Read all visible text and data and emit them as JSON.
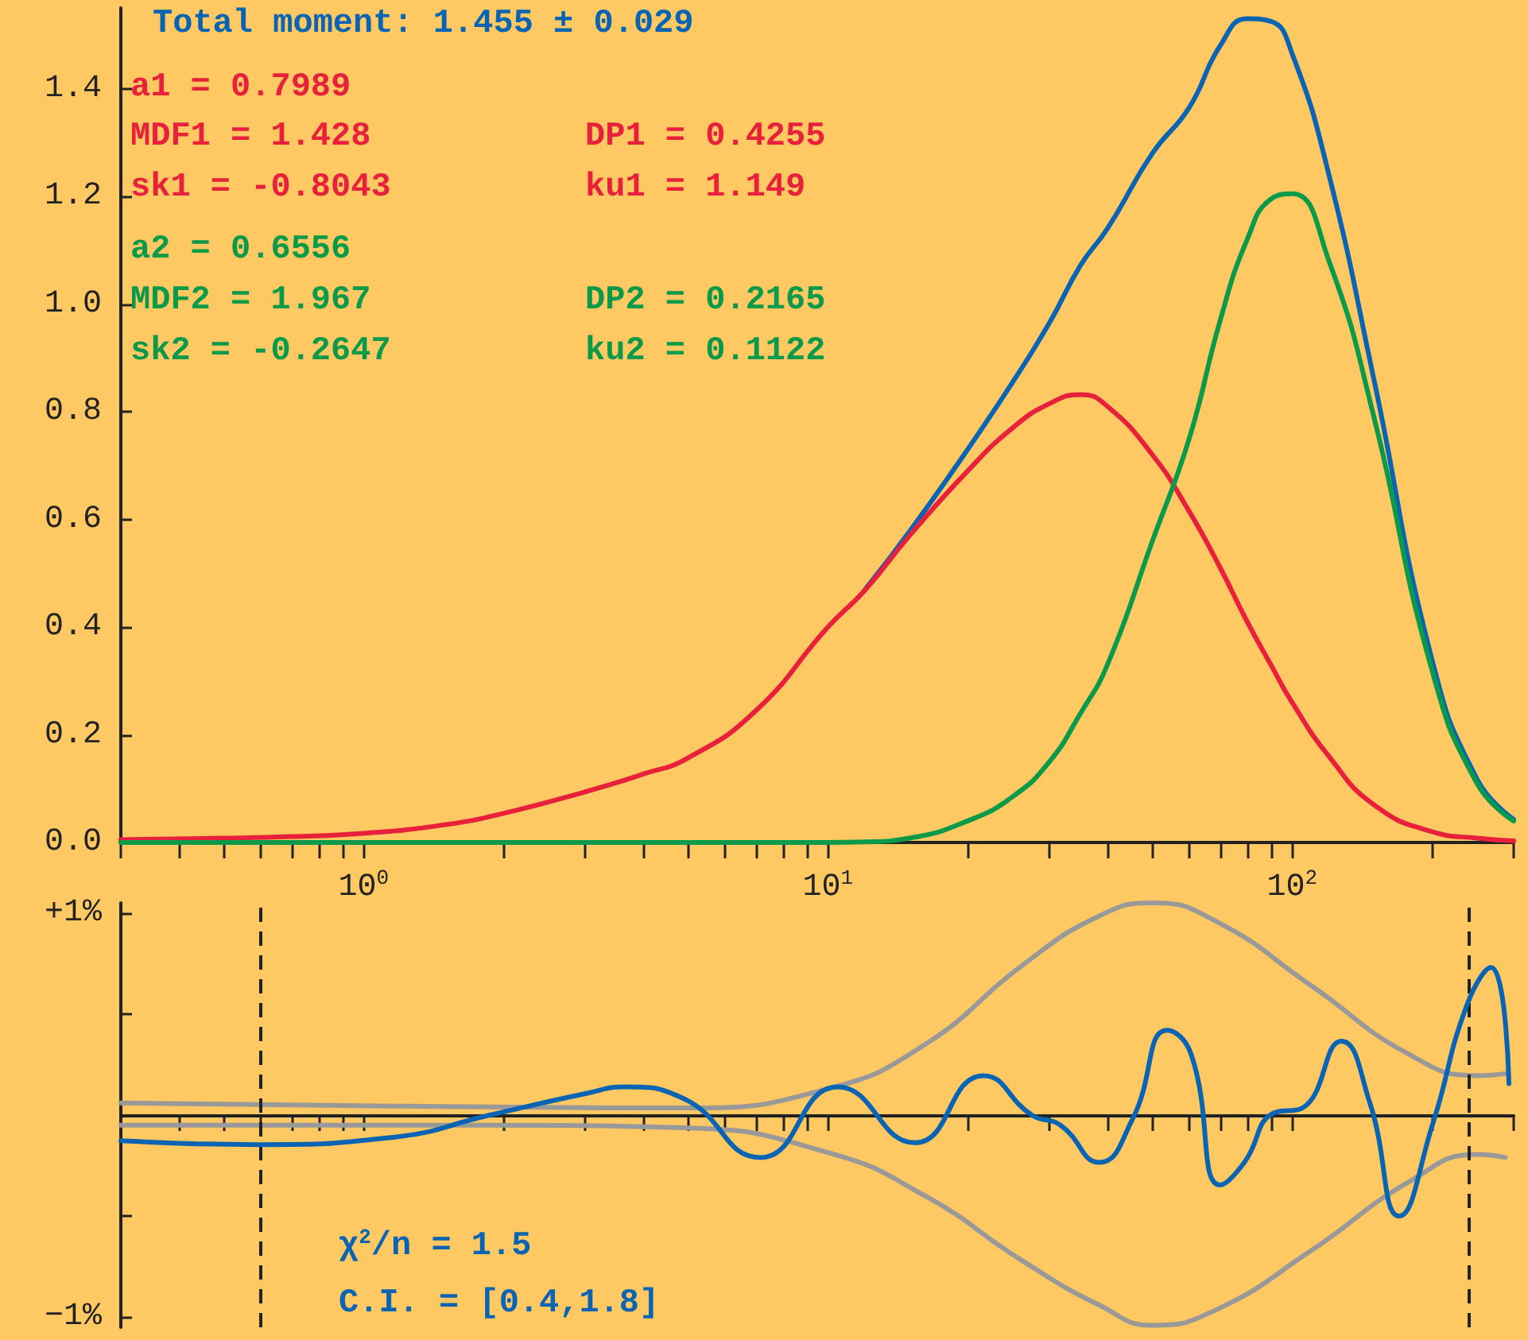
{
  "chart_data": [
    {
      "type": "line",
      "log": "x",
      "xlim": [
        0.3,
        300
      ],
      "ylim": [
        0,
        1.55
      ],
      "marker": "none",
      "line_style": "solid",
      "grid": false,
      "xticks": [
        {
          "value": 0.3,
          "label": null
        },
        {
          "value": 0.4,
          "label": null
        },
        {
          "value": 0.5,
          "label": null
        },
        {
          "value": 0.6,
          "label": null
        },
        {
          "value": 0.7,
          "label": null
        },
        {
          "value": 0.8,
          "label": null
        },
        {
          "value": 0.9,
          "label": null
        },
        {
          "value": 1,
          "label": "10$^{0}$"
        },
        {
          "value": 2,
          "label": null
        },
        {
          "value": 3,
          "label": null
        },
        {
          "value": 4,
          "label": null
        },
        {
          "value": 5,
          "label": null
        },
        {
          "value": 6,
          "label": null
        },
        {
          "value": 7,
          "label": null
        },
        {
          "value": 8,
          "label": null
        },
        {
          "value": 9,
          "label": null
        },
        {
          "value": 10,
          "label": "10$^{1}$"
        },
        {
          "value": 20,
          "label": null
        },
        {
          "value": 30,
          "label": null
        },
        {
          "value": 40,
          "label": null
        },
        {
          "value": 50,
          "label": null
        },
        {
          "value": 60,
          "label": null
        },
        {
          "value": 70,
          "label": null
        },
        {
          "value": 80,
          "label": null
        },
        {
          "value": 90,
          "label": null
        },
        {
          "value": 100,
          "label": "10$^{2}$"
        },
        {
          "value": 200,
          "label": null
        },
        {
          "value": 300,
          "label": null
        }
      ],
      "yticks": [
        {
          "value": 0,
          "label": "0.0"
        },
        0.2,
        0.4,
        0.6,
        0.8,
        {
          "value": 1,
          "label": "1.0"
        },
        1.2,
        1.4
      ],
      "x": [
        0.3,
        0.5,
        0.7,
        1,
        1.5,
        2,
        3,
        4,
        5,
        7,
        10,
        12,
        15,
        20,
        25,
        30,
        35,
        40,
        50,
        60,
        70,
        80,
        90,
        100,
        120,
        150,
        200,
        250,
        300
      ],
      "series": [
        {
          "color": "#0a64b4",
          "values": [
            null,
            null,
            null,
            null,
            null,
            null,
            null,
            null,
            null,
            null,
            null,
            0.469,
            0.578,
            0.73,
            0.855,
            0.965,
            1.072,
            1.14,
            1.28,
            1.365,
            1.48,
            1.53,
            1.525,
            1.465,
            1.24,
            0.86,
            0.34,
            0.118,
            0.043
          ]
        },
        {
          "color": "#e8203c",
          "values": [
            0.005,
            0.008,
            0.011,
            0.017,
            0.033,
            0.054,
            0.094,
            0.127,
            0.157,
            0.245,
            0.4,
            0.468,
            0.57,
            0.69,
            0.77,
            0.815,
            0.832,
            0.81,
            0.72,
            0.615,
            0.51,
            0.41,
            0.33,
            0.26,
            0.16,
            0.07,
            0.02,
            0.008,
            0.003
          ]
        },
        {
          "color": "#0a9a4a",
          "values": [
            0,
            0,
            0,
            0,
            0,
            0,
            0,
            0,
            0,
            0,
            0,
            0.001,
            0.008,
            0.04,
            0.085,
            0.15,
            0.24,
            0.33,
            0.56,
            0.75,
            0.97,
            1.12,
            1.195,
            1.205,
            1.08,
            0.79,
            0.32,
            0.11,
            0.04
          ]
        }
      ],
      "annotations": [
        "Total moment: 1.455 ± 0.029",
        "a1 = 0.7989",
        "MDF1 = 1.428",
        "DP1 = 0.4255",
        "sk1 = -0.8043",
        "ku1 = 1.149",
        "a2 = 0.6556",
        "MDF2 = 1.967",
        "DP2 = 0.2165",
        "sk2 = -0.2647",
        "ku2 = 0.1122"
      ]
    },
    {
      "type": "line",
      "log": "x",
      "xlim": [
        0.3,
        300
      ],
      "ylim": [
        -1.05,
        1.05
      ],
      "marker": "none",
      "line_style": "solid",
      "grid": false,
      "tick_labels": "y",
      "xticks": [
        {
          "value": 0.3,
          "label": null
        },
        {
          "value": 0.4,
          "label": null
        },
        {
          "value": 0.5,
          "label": null
        },
        {
          "value": 0.6,
          "label": null
        },
        {
          "value": 0.7,
          "label": null
        },
        {
          "value": 0.8,
          "label": null
        },
        {
          "value": 0.9,
          "label": null
        },
        {
          "value": 1,
          "label": null
        },
        {
          "value": 2,
          "label": null
        },
        {
          "value": 3,
          "label": null
        },
        {
          "value": 4,
          "label": null
        },
        {
          "value": 5,
          "label": null
        },
        {
          "value": 6,
          "label": null
        },
        {
          "value": 7,
          "label": null
        },
        {
          "value": 8,
          "label": null
        },
        {
          "value": 9,
          "label": null
        },
        {
          "value": 10,
          "label": null
        },
        {
          "value": 20,
          "label": null
        },
        {
          "value": 30,
          "label": null
        },
        {
          "value": 40,
          "label": null
        },
        {
          "value": 50,
          "label": null
        },
        {
          "value": 60,
          "label": null
        },
        {
          "value": 70,
          "label": null
        },
        {
          "value": 80,
          "label": null
        },
        {
          "value": 90,
          "label": null
        },
        {
          "value": 100,
          "label": null
        },
        {
          "value": 200,
          "label": null
        },
        {
          "value": 300,
          "label": null
        }
      ],
      "yticks": [
        {
          "value": -1,
          "label": "−1%"
        },
        {
          "value": -0.5,
          "label": null
        },
        {
          "value": 0.5,
          "label": null
        },
        {
          "value": 1,
          "label": "+1%"
        }
      ],
      "series": [
        {
          "color": "#999999",
          "x": [
            0.3,
            0.716,
            1.87,
            4.88,
            10,
            16.2,
            26.2,
            38.4,
            50,
            68.4,
            110,
            178.6,
            250,
            288
          ],
          "values": [
            0.06,
            0.05,
            0.04,
            0.035,
            0.13,
            0.35,
            0.74,
            0.985,
            1.05,
            0.96,
            0.64,
            0.3,
            0.195,
            0.205
          ]
        },
        {
          "color": "#999999",
          "x": [
            0.3,
            0.716,
            1.87,
            4.88,
            10,
            16.2,
            26.2,
            38.4,
            50,
            68.4,
            110,
            178.6,
            250,
            288
          ],
          "values": [
            -0.05,
            -0.05,
            -0.05,
            -0.063,
            -0.185,
            -0.4,
            -0.72,
            -0.94,
            -1.04,
            -0.965,
            -0.67,
            -0.33,
            -0.195,
            -0.21
          ]
        },
        {
          "color": "#0a64b4",
          "x": [
            0.3,
            0.59,
            1.157,
            1.87,
            3.02,
            3.66,
            4.88,
            7.16,
            10.5,
            15.4,
            21.6,
            27.5,
            31.7,
            38.4,
            45.4,
            53.8,
            60.6,
            70,
            78.9,
            91.2,
            105,
            127.6,
            147,
            170,
            201,
            238,
            268,
            293
          ],
          "values": [
            -0.127,
            -0.146,
            -0.11,
            0,
            0.107,
            0.14,
            0.083,
            -0.21,
            0.14,
            -0.137,
            0.195,
            0,
            -0.05,
            -0.234,
            -0.015,
            0.42,
            0.3,
            -0.346,
            -0.234,
            0.01,
            0.034,
            0.366,
            0.06,
            -0.5,
            -0.04,
            0.545,
            0.73,
            0.156
          ]
        }
      ],
      "ref_lines": [
        {
          "axis": "x",
          "value": 0.6,
          "color": "#222222",
          "line_style": "dashed"
        },
        {
          "axis": "x",
          "value": 240,
          "color": "#222222",
          "line_style": "dashed"
        }
      ],
      "annotations": [
        "χ$^{2}$/n = 1.5",
        "C.I. = [0.4,1.8]"
      ]
    }
  ]
}
